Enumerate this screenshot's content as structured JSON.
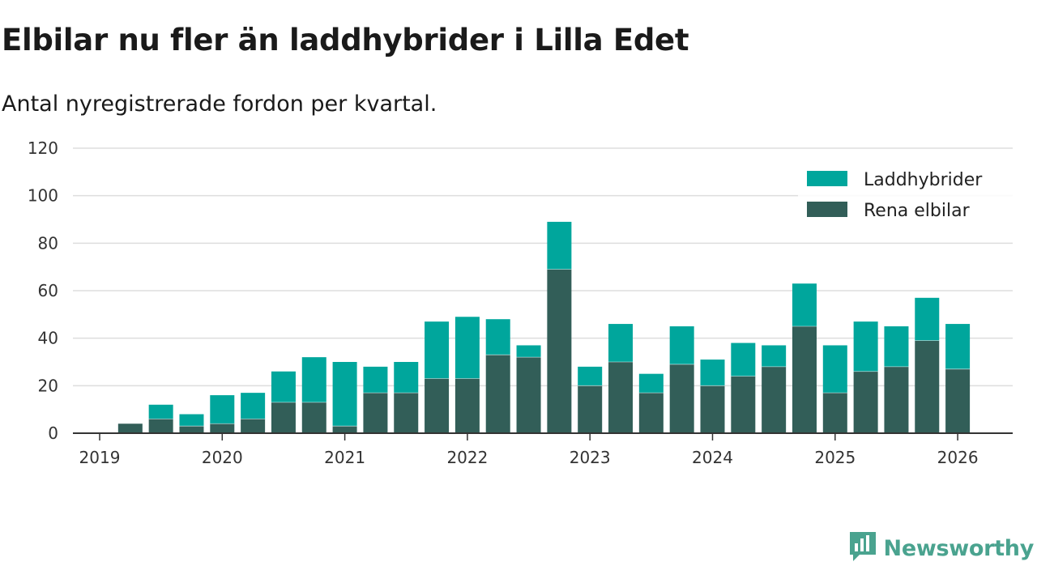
{
  "header": {
    "title": "Elbilar nu fler än laddhybrider i Lilla Edet",
    "subtitle": "Antal nyregistrerade fordon per kvartal."
  },
  "branding": {
    "name": "Newsworthy",
    "icon": "newsworthy-logo-icon"
  },
  "colors": {
    "laddhybrider": "#00a69c",
    "elbilar": "#325e58",
    "grid": "#dddddd",
    "axis": "#333333",
    "brand": "#4aa38f"
  },
  "chart_data": {
    "type": "bar",
    "stacked": true,
    "title": "Elbilar nu fler än laddhybrider i Lilla Edet",
    "subtitle": "Antal nyregistrerade fordon per kvartal.",
    "xlabel": "",
    "ylabel": "",
    "ylim": [
      0,
      120
    ],
    "yticks": [
      0,
      20,
      40,
      60,
      80,
      100,
      120
    ],
    "xtick_labels": [
      "2019",
      "2020",
      "2021",
      "2022",
      "2023",
      "2024",
      "2025",
      "2026"
    ],
    "legend_position": "top-right",
    "categories": [
      "2019 Q1",
      "2019 Q2",
      "2019 Q3",
      "2019 Q4",
      "2020 Q1",
      "2020 Q2",
      "2020 Q3",
      "2020 Q4",
      "2021 Q1",
      "2021 Q2",
      "2021 Q3",
      "2021 Q4",
      "2022 Q1",
      "2022 Q2",
      "2022 Q3",
      "2022 Q4",
      "2023 Q1",
      "2023 Q2",
      "2023 Q3",
      "2023 Q4",
      "2024 Q1",
      "2024 Q2",
      "2024 Q3",
      "2024 Q4",
      "2025 Q1",
      "2025 Q2",
      "2025 Q3",
      "2025 Q4"
    ],
    "series": [
      {
        "name": "Rena elbilar",
        "values": [
          4,
          6,
          3,
          4,
          6,
          13,
          13,
          3,
          17,
          17,
          23,
          23,
          33,
          32,
          69,
          20,
          30,
          17,
          29,
          20,
          24,
          28,
          45,
          17,
          26,
          28,
          39,
          27
        ]
      },
      {
        "name": "Laddhybrider",
        "values": [
          0,
          6,
          5,
          12,
          11,
          13,
          19,
          27,
          11,
          13,
          24,
          26,
          15,
          5,
          20,
          8,
          16,
          8,
          16,
          11,
          14,
          9,
          18,
          20,
          21,
          17,
          18,
          19
        ]
      }
    ]
  }
}
